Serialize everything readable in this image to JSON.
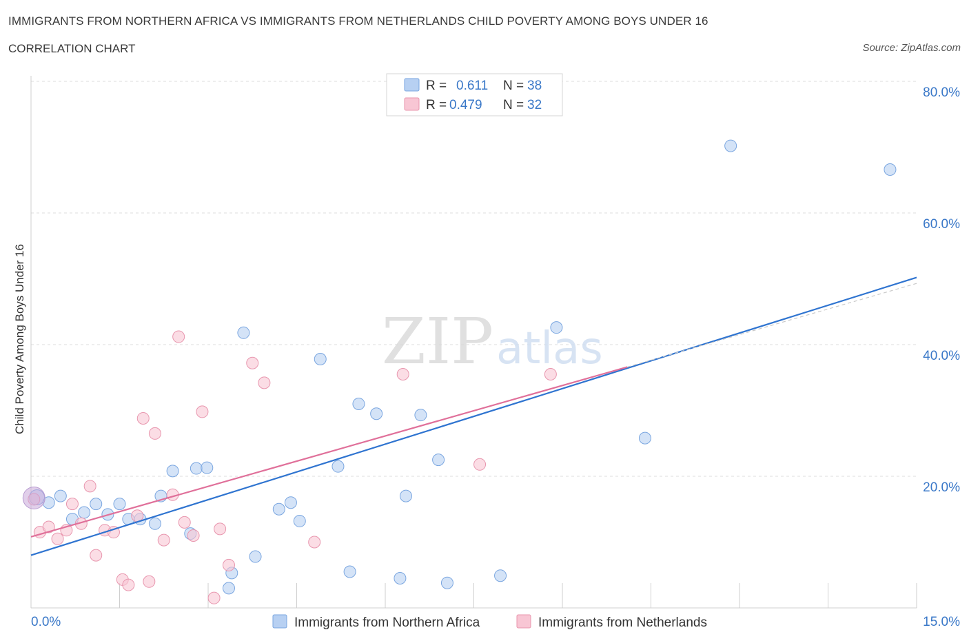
{
  "header": {
    "title": "IMMIGRANTS FROM NORTHERN AFRICA VS IMMIGRANTS FROM NETHERLANDS CHILD POVERTY AMONG BOYS UNDER 16",
    "subtitle": "CORRELATION CHART",
    "source": "Source: ZipAtlas.com"
  },
  "watermark": {
    "zip": "ZIP",
    "atlas": "atlas"
  },
  "colors": {
    "blue_fill": "#b7d0f2",
    "blue_stroke": "#7aa6e0",
    "blue_line": "#2f74d0",
    "pink_fill": "#f8c6d4",
    "pink_stroke": "#e896ae",
    "pink_line": "#e0709a",
    "value_text": "#3a78c8",
    "grid": "#dcdcdc"
  },
  "chart_data": {
    "type": "scatter",
    "xlabel": "",
    "ylabel": "Child Poverty Among Boys Under 16",
    "xlim": [
      0,
      15
    ],
    "ylim": [
      0,
      80
    ],
    "x_tick_labels": [
      "0.0%",
      "15.0%"
    ],
    "y_ticks": [
      20,
      40,
      60,
      80
    ],
    "y_tick_labels": [
      "20.0%",
      "40.0%",
      "60.0%",
      "80.0%"
    ],
    "grid": true,
    "legend_top": [
      {
        "r_label": "R =",
        "r_value": "0.611",
        "n_label": "N =",
        "n_value": "38",
        "series": "blue"
      },
      {
        "r_label": "R =",
        "r_value": "0.479",
        "n_label": "N =",
        "n_value": "32",
        "series": "pink"
      }
    ],
    "legend_bottom": [
      "Immigrants from Northern Africa",
      "Immigrants from Netherlands"
    ],
    "series": [
      {
        "name": "Immigrants from Northern Africa",
        "color": "blue",
        "points": [
          [
            0.1,
            16.8
          ],
          [
            0.3,
            16.0
          ],
          [
            0.5,
            17.0
          ],
          [
            0.7,
            13.5
          ],
          [
            0.9,
            14.5
          ],
          [
            1.1,
            15.8
          ],
          [
            1.3,
            14.2
          ],
          [
            1.5,
            15.8
          ],
          [
            1.65,
            13.5
          ],
          [
            1.85,
            13.5
          ],
          [
            2.1,
            12.8
          ],
          [
            2.2,
            17.0
          ],
          [
            2.4,
            20.8
          ],
          [
            2.7,
            11.3
          ],
          [
            2.8,
            21.2
          ],
          [
            2.98,
            21.3
          ],
          [
            3.35,
            3.0
          ],
          [
            3.4,
            5.3
          ],
          [
            3.6,
            41.8
          ],
          [
            3.8,
            7.8
          ],
          [
            4.2,
            15.0
          ],
          [
            4.4,
            16.0
          ],
          [
            4.55,
            13.2
          ],
          [
            4.9,
            37.8
          ],
          [
            5.2,
            21.5
          ],
          [
            5.4,
            5.5
          ],
          [
            5.55,
            31.0
          ],
          [
            5.85,
            29.5
          ],
          [
            6.25,
            4.5
          ],
          [
            6.35,
            17.0
          ],
          [
            6.6,
            29.3
          ],
          [
            6.9,
            22.5
          ],
          [
            7.05,
            3.8
          ],
          [
            7.95,
            4.9
          ],
          [
            8.9,
            42.6
          ],
          [
            10.4,
            25.8
          ],
          [
            11.85,
            70.2
          ],
          [
            14.55,
            66.6
          ]
        ],
        "trend": {
          "x": [
            0,
            15
          ],
          "y": [
            8.0,
            50.2
          ]
        }
      },
      {
        "name": "Immigrants from Netherlands",
        "color": "pink",
        "points": [
          [
            0.05,
            16.5
          ],
          [
            0.15,
            11.5
          ],
          [
            0.3,
            12.3
          ],
          [
            0.45,
            10.5
          ],
          [
            0.6,
            11.8
          ],
          [
            0.7,
            15.8
          ],
          [
            0.85,
            12.8
          ],
          [
            1.0,
            18.5
          ],
          [
            1.1,
            8.0
          ],
          [
            1.25,
            11.8
          ],
          [
            1.4,
            11.5
          ],
          [
            1.55,
            4.3
          ],
          [
            1.65,
            3.5
          ],
          [
            1.8,
            14.0
          ],
          [
            1.9,
            28.8
          ],
          [
            2.0,
            4.0
          ],
          [
            2.1,
            26.5
          ],
          [
            2.25,
            10.3
          ],
          [
            2.4,
            17.2
          ],
          [
            2.5,
            41.2
          ],
          [
            2.6,
            13.0
          ],
          [
            2.75,
            11.0
          ],
          [
            2.9,
            29.8
          ],
          [
            3.1,
            1.5
          ],
          [
            3.2,
            12.0
          ],
          [
            3.35,
            6.5
          ],
          [
            3.75,
            37.2
          ],
          [
            3.95,
            34.2
          ],
          [
            4.8,
            10.0
          ],
          [
            6.3,
            35.5
          ],
          [
            7.6,
            21.8
          ],
          [
            8.8,
            35.5
          ]
        ],
        "trend": {
          "x": [
            0,
            10.1
          ],
          "y": [
            10.8,
            36.6
          ]
        },
        "trend_dashed_extension": {
          "x": [
            10.1,
            15
          ],
          "y": [
            36.6,
            49.3
          ]
        }
      }
    ]
  }
}
